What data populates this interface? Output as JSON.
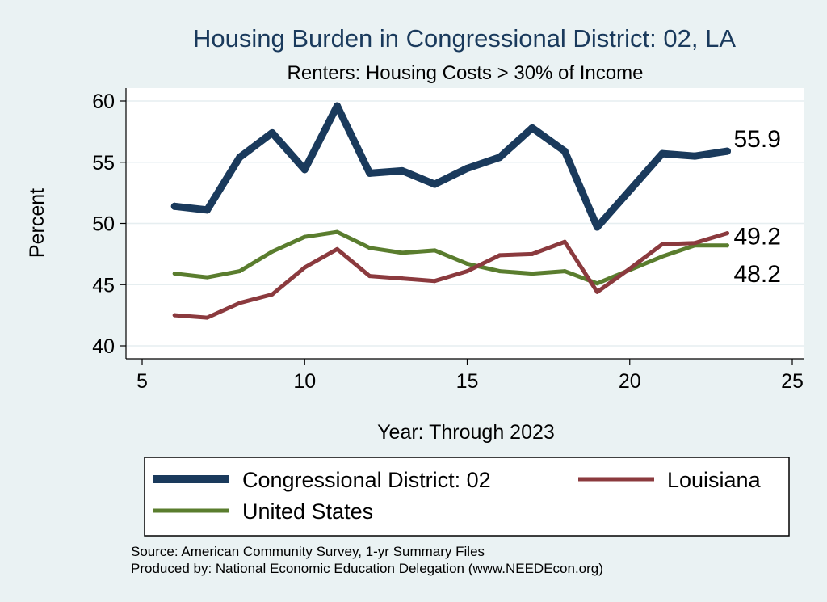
{
  "chart_data": {
    "type": "line",
    "title": "Housing Burden in Congressional District:  02, LA",
    "subtitle": "Renters: Housing Costs > 30% of Income",
    "xlabel": "Year: Through 2023",
    "ylabel": "Percent",
    "xlim": [
      5,
      25
    ],
    "ylim": [
      40,
      60
    ],
    "xticks": [
      "5",
      "10",
      "15",
      "20",
      "25"
    ],
    "yticks": [
      "40",
      "45",
      "50",
      "55",
      "60"
    ],
    "grid": true,
    "legend_position": "bottom",
    "x": [
      6,
      7,
      8,
      9,
      10,
      11,
      12,
      13,
      14,
      15,
      16,
      17,
      18,
      19,
      20,
      21,
      22,
      23
    ],
    "series": [
      {
        "name": "Congressional District:  02",
        "color": "#1a3a5c",
        "values": [
          51.4,
          51.1,
          55.4,
          57.4,
          54.4,
          59.6,
          54.1,
          54.3,
          53.2,
          54.5,
          55.4,
          57.8,
          55.9,
          49.7,
          52.7,
          55.7,
          55.5,
          55.9
        ],
        "end_label": "55.9"
      },
      {
        "name": "Louisiana",
        "color": "#8b3a3e",
        "values": [
          42.5,
          42.3,
          43.5,
          44.2,
          46.4,
          47.9,
          45.7,
          45.5,
          45.3,
          46.1,
          47.4,
          47.5,
          48.5,
          44.4,
          46.3,
          48.3,
          48.4,
          49.2
        ],
        "end_label": "49.2"
      },
      {
        "name": "United States",
        "color": "#5a7d2e",
        "values": [
          45.9,
          45.6,
          46.1,
          47.7,
          48.9,
          49.3,
          48.0,
          47.6,
          47.8,
          46.7,
          46.1,
          45.9,
          46.1,
          45.1,
          46.2,
          47.3,
          48.2,
          48.2
        ],
        "end_label": "48.2"
      }
    ],
    "source_note": "Source: American Community Survey, 1-yr Summary Files",
    "produced_note": "Produced by: National Economic Education Delegation (www.NEEDEcon.org)"
  }
}
